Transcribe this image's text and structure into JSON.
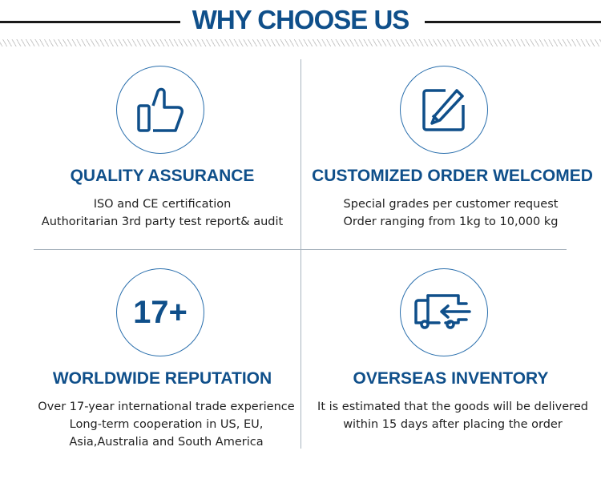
{
  "title": "WHY CHOOSE US",
  "colors": {
    "accent": "#0f4f8a"
  },
  "features": [
    {
      "icon": "thumbs-up-icon",
      "heading": "QUALITY ASSURANCE",
      "lines": [
        "ISO and CE certification",
        "Authoritarian 3rd party test report& audit"
      ]
    },
    {
      "icon": "edit-pencil-icon",
      "heading": "CUSTOMIZED ORDER WELCOMED",
      "lines": [
        "Special grades per customer request",
        "Order ranging from 1kg to 10,000 kg"
      ]
    },
    {
      "icon_text": "17+",
      "heading": "WORLDWIDE REPUTATION",
      "lines": [
        "Over 17-year international trade experience",
        "Long-term cooperation in US, EU,",
        "Asia,Australia and South America"
      ]
    },
    {
      "icon": "delivery-truck-icon",
      "heading": "OVERSEAS INVENTORY",
      "lines": [
        "It is estimated that the goods will be delivered",
        "within 15 days after placing the order"
      ]
    }
  ]
}
